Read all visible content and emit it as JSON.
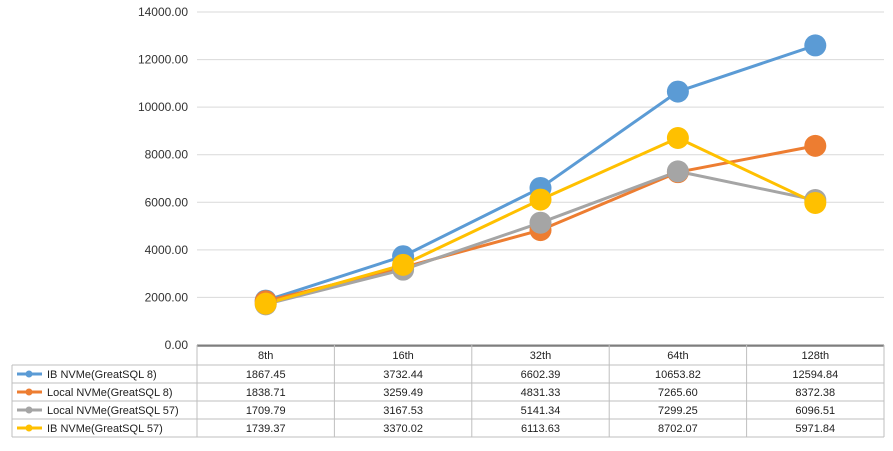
{
  "chart_data": {
    "type": "line",
    "categories": [
      "8th",
      "16th",
      "32th",
      "64th",
      "128th"
    ],
    "ylim": [
      0,
      14000
    ],
    "y_ticks": [
      "0.00",
      "2000.00",
      "4000.00",
      "6000.00",
      "8000.00",
      "10000.00",
      "12000.00",
      "14000.00"
    ],
    "grid": true,
    "legend": "data-table-left",
    "series": [
      {
        "name": "IB NVMe(GreatSQL 8)",
        "color": "#5b9bd5",
        "values": [
          1867.45,
          3732.44,
          6602.39,
          10653.82,
          12594.84
        ],
        "labels": [
          "1867.45",
          "3732.44",
          "6602.39",
          "10653.82",
          "12594.84"
        ]
      },
      {
        "name": "Local NVMe(GreatSQL 8)",
        "color": "#ed7d31",
        "values": [
          1838.71,
          3259.49,
          4831.33,
          7265.6,
          8372.38
        ],
        "labels": [
          "1838.71",
          "3259.49",
          "4831.33",
          "7265.60",
          "8372.38"
        ]
      },
      {
        "name": "Local NVMe(GreatSQL 57)",
        "color": "#a5a5a5",
        "values": [
          1709.79,
          3167.53,
          5141.34,
          7299.25,
          6096.51
        ],
        "labels": [
          "1709.79",
          "3167.53",
          "5141.34",
          "7299.25",
          "6096.51"
        ]
      },
      {
        "name": "IB NVMe(GreatSQL 57)",
        "color": "#ffc000",
        "values": [
          1739.37,
          3370.02,
          6113.63,
          8702.07,
          5971.84
        ],
        "labels": [
          "1739.37",
          "3370.02",
          "6113.63",
          "8702.07",
          "5971.84"
        ]
      }
    ]
  }
}
